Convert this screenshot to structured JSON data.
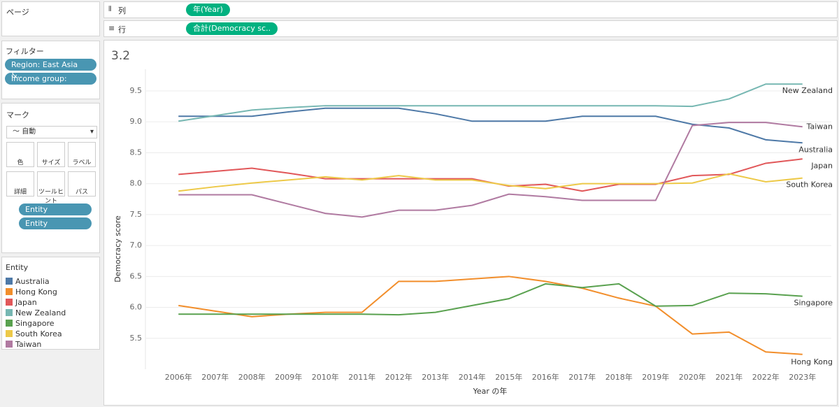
{
  "shelves": {
    "pages": "ページ",
    "columns": {
      "label": "列",
      "pill": "年(Year)"
    },
    "rows": {
      "label": "行",
      "pill": "合計(Democracy sc.."
    }
  },
  "filters": {
    "title": "フィルター",
    "items": [
      "Region: East Asia &..",
      "Income group: High.."
    ]
  },
  "marks": {
    "title": "マーク",
    "type": "自動",
    "buttons": [
      "色",
      "サイズ",
      "ラベル",
      "詳細",
      "ツールヒント",
      "パス"
    ],
    "fields": [
      "Entity",
      "Entity"
    ]
  },
  "legend": {
    "title": "Entity"
  },
  "chart_data": {
    "type": "line",
    "title": "3.2",
    "x_label": "Year の年",
    "y_label": "Democracy score",
    "categories": [
      "2006年",
      "2007年",
      "2008年",
      "2009年",
      "2010年",
      "2011年",
      "2012年",
      "2013年",
      "2014年",
      "2015年",
      "2016年",
      "2017年",
      "2018年",
      "2019年",
      "2020年",
      "2021年",
      "2022年",
      "2023年"
    ],
    "ylim": [
      5.0,
      9.85
    ],
    "yticks": [
      5.5,
      {
        "value": 6,
        "label": "6.0"
      },
      6.5,
      {
        "value": 7,
        "label": "7.0"
      },
      7.5,
      {
        "value": 8,
        "label": "8.0"
      },
      8.5,
      {
        "value": 9,
        "label": "9.0"
      },
      9.5
    ],
    "grid": true,
    "series": [
      {
        "name": "Australia",
        "color": "#4e79a7",
        "values": [
          9.09,
          9.09,
          9.09,
          9.16,
          9.22,
          9.22,
          9.22,
          9.13,
          9.01,
          9.01,
          9.01,
          9.09,
          9.09,
          9.09,
          8.96,
          8.9,
          8.71,
          8.66
        ]
      },
      {
        "name": "Hong Kong",
        "color": "#f28e2b",
        "values": [
          6.03,
          5.94,
          5.85,
          5.89,
          5.92,
          5.92,
          6.42,
          6.42,
          6.46,
          6.5,
          6.42,
          6.31,
          6.15,
          6.02,
          5.57,
          5.6,
          5.28,
          5.24
        ]
      },
      {
        "name": "Japan",
        "color": "#e15759",
        "values": [
          8.15,
          8.2,
          8.25,
          8.17,
          8.08,
          8.08,
          8.08,
          8.08,
          8.08,
          7.96,
          7.99,
          7.88,
          7.99,
          7.99,
          8.13,
          8.15,
          8.33,
          8.4
        ]
      },
      {
        "name": "New Zealand",
        "color": "#76b7b2",
        "values": [
          9.01,
          9.1,
          9.19,
          9.23,
          9.26,
          9.26,
          9.26,
          9.26,
          9.26,
          9.26,
          9.26,
          9.26,
          9.26,
          9.26,
          9.25,
          9.37,
          9.61,
          9.61
        ]
      },
      {
        "name": "Singapore",
        "color": "#59a14f",
        "values": [
          5.89,
          5.89,
          5.89,
          5.89,
          5.89,
          5.89,
          5.88,
          5.92,
          6.03,
          6.14,
          6.38,
          6.32,
          6.38,
          6.02,
          6.03,
          6.23,
          6.22,
          6.18
        ]
      },
      {
        "name": "South Korea",
        "color": "#edc948",
        "values": [
          7.88,
          7.95,
          8.01,
          8.06,
          8.11,
          8.06,
          8.13,
          8.06,
          8.06,
          7.97,
          7.92,
          8.0,
          8.0,
          8.0,
          8.01,
          8.16,
          8.03,
          8.09
        ]
      },
      {
        "name": "Taiwan",
        "color": "#b07aa1",
        "values": [
          7.82,
          7.82,
          7.82,
          7.67,
          7.52,
          7.46,
          7.57,
          7.57,
          7.65,
          7.83,
          7.79,
          7.73,
          7.73,
          7.73,
          8.94,
          8.99,
          8.99,
          8.92
        ]
      }
    ]
  }
}
